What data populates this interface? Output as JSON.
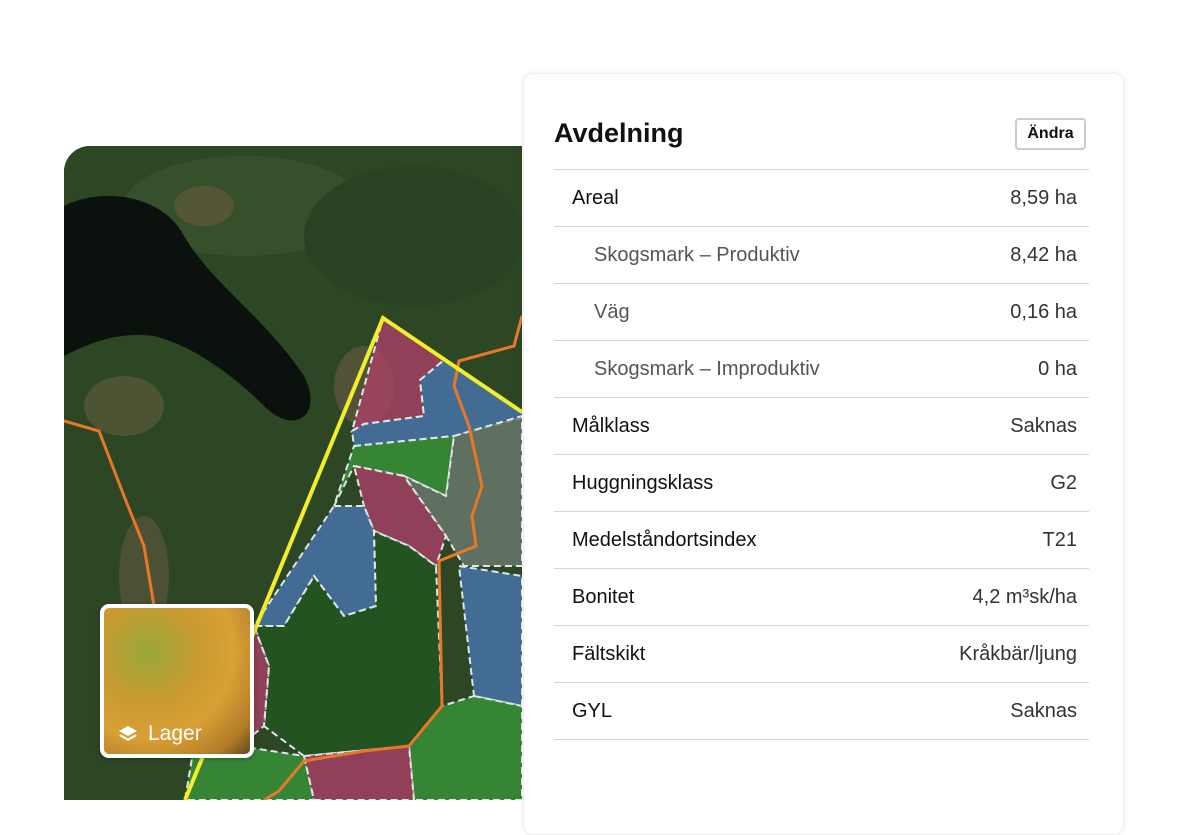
{
  "map": {
    "layer_button": {
      "label": "Lager",
      "icon": "layers-icon"
    },
    "colors": {
      "boundary": "#f2ee2a",
      "road": "#e8772a",
      "magenta": "#b0406a",
      "blue": "#4a78b8",
      "green": "#3a9a3a",
      "gray": "#6b7a6e"
    }
  },
  "panel": {
    "title": "Avdelning",
    "edit_label": "Ändra",
    "rows": [
      {
        "label": "Areal",
        "value": "8,59 ha",
        "sub": false
      },
      {
        "label": "Skogsmark – Produktiv",
        "value": "8,42 ha",
        "sub": true
      },
      {
        "label": "Väg",
        "value": "0,16 ha",
        "sub": true
      },
      {
        "label": "Skogsmark – Improduktiv",
        "value": "0 ha",
        "sub": true
      },
      {
        "label": "Målklass",
        "value": "Saknas",
        "sub": false
      },
      {
        "label": "Huggningsklass",
        "value": "G2",
        "sub": false
      },
      {
        "label": "Medelståndortsindex",
        "value": "T21",
        "sub": false
      },
      {
        "label": "Bonitet",
        "value": "4,2 m³sk/ha",
        "sub": false
      },
      {
        "label": "Fältskikt",
        "value": "Kråkbär/ljung",
        "sub": false
      },
      {
        "label": "GYL",
        "value": "Saknas",
        "sub": false
      }
    ]
  }
}
